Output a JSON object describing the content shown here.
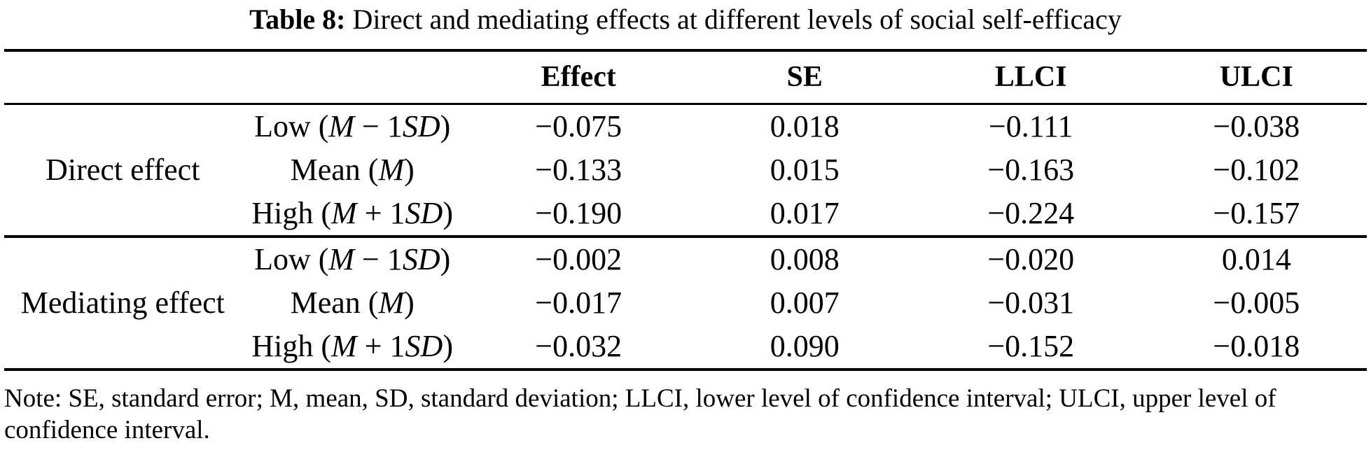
{
  "title": {
    "prefix": "Table 8:",
    "rest": " Direct and mediating effects at different levels of social self-efficacy"
  },
  "table": {
    "column_headers": [
      "Effect",
      "SE",
      "LLCI",
      "ULCI"
    ],
    "groups": [
      {
        "label": "Direct effect",
        "rows": [
          {
            "level": [
              {
                "t": "Low ("
              },
              {
                "t": "M",
                "italic": true
              },
              {
                "t": " − 1"
              },
              {
                "t": "SD",
                "italic": true
              },
              {
                "t": ")"
              }
            ],
            "values": [
              "−0.075",
              "0.018",
              "−0.111",
              "−0.038"
            ]
          },
          {
            "level": [
              {
                "t": "Mean ("
              },
              {
                "t": "M",
                "italic": true
              },
              {
                "t": ")"
              }
            ],
            "values": [
              "−0.133",
              "0.015",
              "−0.163",
              "−0.102"
            ]
          },
          {
            "level": [
              {
                "t": "High ("
              },
              {
                "t": "M",
                "italic": true
              },
              {
                "t": " + 1"
              },
              {
                "t": "SD",
                "italic": true
              },
              {
                "t": ")"
              }
            ],
            "values": [
              "−0.190",
              "0.017",
              "−0.224",
              "−0.157"
            ]
          }
        ]
      },
      {
        "label": "Mediating effect",
        "rows": [
          {
            "level": [
              {
                "t": "Low ("
              },
              {
                "t": "M",
                "italic": true
              },
              {
                "t": " − 1"
              },
              {
                "t": "SD",
                "italic": true
              },
              {
                "t": ")"
              }
            ],
            "values": [
              "−0.002",
              "0.008",
              "−0.020",
              "0.014"
            ]
          },
          {
            "level": [
              {
                "t": "Mean ("
              },
              {
                "t": "M",
                "italic": true
              },
              {
                "t": ")"
              }
            ],
            "values": [
              "−0.017",
              "0.007",
              "−0.031",
              "−0.005"
            ]
          },
          {
            "level": [
              {
                "t": "High ("
              },
              {
                "t": "M",
                "italic": true
              },
              {
                "t": " + 1"
              },
              {
                "t": "SD",
                "italic": true
              },
              {
                "t": ")"
              }
            ],
            "values": [
              "−0.032",
              "0.090",
              "−0.152",
              "−0.018"
            ]
          }
        ]
      }
    ]
  },
  "note": "Note: SE, standard error; M, mean, SD, standard deviation; LLCI, lower level of confidence interval; ULCI, upper level of confidence interval."
}
